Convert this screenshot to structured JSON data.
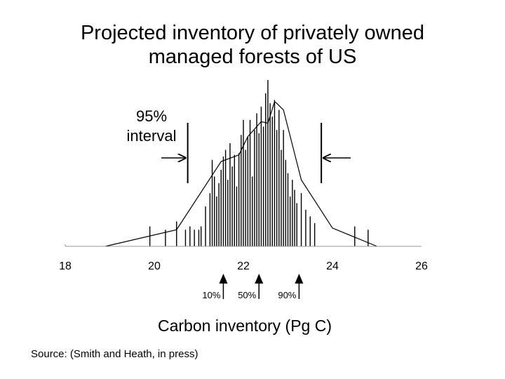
{
  "title_line1": "Projected inventory of privately owned",
  "title_line2": "managed forests of US",
  "source": {
    "prefix": "Source: ",
    "text": "(Smith and Heath, in press)"
  },
  "chart_data": {
    "type": "histogram",
    "xlabel": "Carbon inventory (Pg C)",
    "ylabel": "",
    "xlim": [
      18,
      26
    ],
    "ylim": [
      0,
      1
    ],
    "xticks": [
      18,
      20,
      22,
      24,
      26
    ],
    "grid": false,
    "legend": "none",
    "colors": {
      "line": "#000000",
      "bars": "#000000",
      "axis": "#999999"
    },
    "interval_annotation": {
      "label_line1": "95%",
      "label_line2": "interval",
      "range": [
        20.75,
        23.75
      ]
    },
    "percentile_markers": [
      {
        "label": "10%",
        "x": 21.55
      },
      {
        "label": "50%",
        "x": 22.35
      },
      {
        "label": "90%",
        "x": 23.25
      }
    ],
    "density_curve": {
      "x": [
        18.9,
        20.5,
        21.5,
        21.9,
        22.1,
        22.4,
        22.55,
        22.7,
        22.75,
        22.9,
        23.3,
        24.0,
        25.0
      ],
      "y": [
        0.0,
        0.1,
        0.51,
        0.55,
        0.66,
        0.75,
        0.74,
        0.87,
        0.86,
        0.82,
        0.4,
        0.11,
        0.0
      ]
    },
    "bars": {
      "x": [
        19.9,
        20.25,
        20.5,
        20.7,
        20.8,
        20.9,
        21.0,
        21.05,
        21.15,
        21.25,
        21.3,
        21.35,
        21.4,
        21.45,
        21.5,
        21.55,
        21.6,
        21.65,
        21.7,
        21.75,
        21.8,
        21.85,
        21.9,
        21.95,
        22.0,
        22.05,
        22.1,
        22.15,
        22.2,
        22.25,
        22.3,
        22.35,
        22.4,
        22.45,
        22.5,
        22.55,
        22.6,
        22.65,
        22.7,
        22.75,
        22.8,
        22.85,
        22.9,
        22.95,
        23.0,
        23.05,
        23.1,
        23.15,
        23.2,
        23.3,
        23.4,
        23.5,
        23.6,
        24.5,
        24.8
      ],
      "y": [
        0.12,
        0.1,
        0.15,
        0.1,
        0.12,
        0.1,
        0.1,
        0.12,
        0.24,
        0.32,
        0.52,
        0.42,
        0.3,
        0.38,
        0.46,
        0.54,
        0.58,
        0.4,
        0.62,
        0.48,
        0.55,
        0.36,
        0.56,
        0.67,
        0.76,
        0.58,
        0.66,
        0.76,
        0.42,
        0.7,
        0.8,
        0.68,
        0.84,
        0.72,
        0.92,
        1.0,
        0.86,
        0.78,
        0.88,
        0.7,
        0.82,
        0.58,
        0.7,
        0.52,
        0.44,
        0.3,
        0.4,
        0.34,
        0.26,
        0.32,
        0.22,
        0.18,
        0.14,
        0.12,
        0.1
      ]
    }
  }
}
